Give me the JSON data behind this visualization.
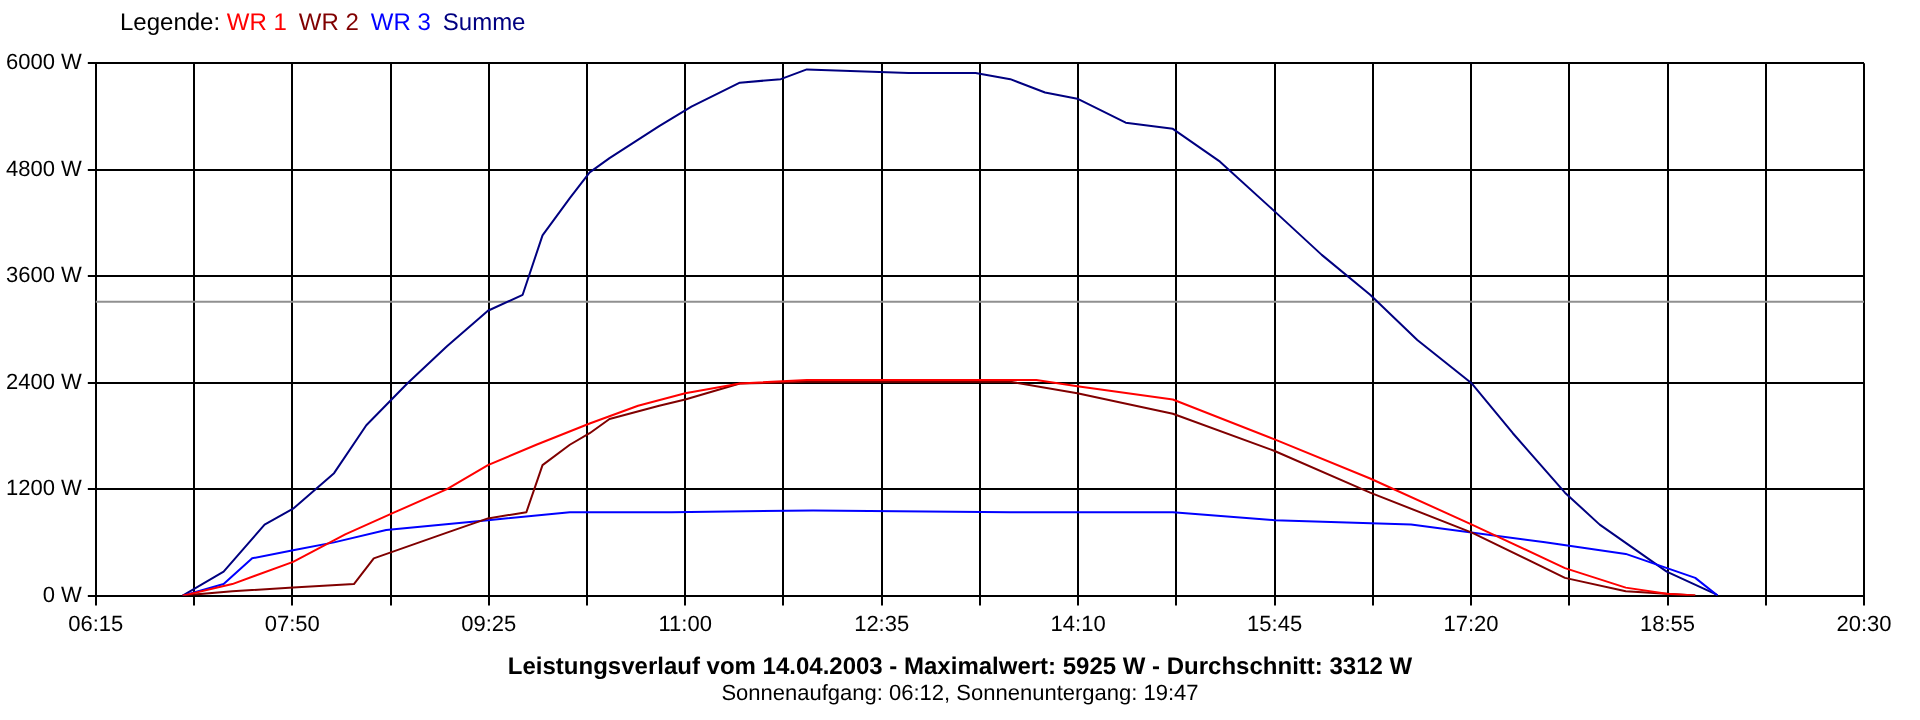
{
  "chart_data": {
    "type": "line",
    "title": "Leistungsverlauf vom 14.04.2003 - Maximalwert: 5925 W - Durchschnitt: 3312 W",
    "subtitle": "Sonnenaufgang: 06:12, Sonnenuntergang: 19:47",
    "legend_title": "Legende:",
    "legend": "top left",
    "grid": true,
    "marker": "none",
    "line_style": "solid",
    "xlim": [
      6.25,
      20.5
    ],
    "xticks": [
      {
        "value": 6.25,
        "label": "06:15"
      },
      {
        "value": 7.0417,
        "label": null
      },
      {
        "value": 7.8333,
        "label": "07:50"
      },
      {
        "value": 8.625,
        "label": null
      },
      {
        "value": 9.4167,
        "label": "09:25"
      },
      {
        "value": 10.2083,
        "label": null
      },
      {
        "value": 11,
        "label": "11:00"
      },
      {
        "value": 11.7917,
        "label": null
      },
      {
        "value": 12.5833,
        "label": "12:35"
      },
      {
        "value": 13.375,
        "label": null
      },
      {
        "value": 14.1667,
        "label": "14:10"
      },
      {
        "value": 14.9583,
        "label": null
      },
      {
        "value": 15.75,
        "label": "15:45"
      },
      {
        "value": 16.5417,
        "label": null
      },
      {
        "value": 17.3333,
        "label": "17:20"
      },
      {
        "value": 18.125,
        "label": null
      },
      {
        "value": 18.9167,
        "label": "18:55"
      },
      {
        "value": 19.7083,
        "label": null
      },
      {
        "value": 20.5,
        "label": "20:30"
      }
    ],
    "ylim": [
      0,
      6000
    ],
    "yticks": [
      {
        "value": 0,
        "label": "0 W"
      },
      {
        "value": 1200,
        "label": "1200 W"
      },
      {
        "value": 2400,
        "label": "2400 W"
      },
      {
        "value": 3600,
        "label": "3600 W"
      },
      {
        "value": 4800,
        "label": "4800 W"
      },
      {
        "value": 6000,
        "label": "6000 W"
      }
    ],
    "ref_lines": [
      {
        "axis": "y",
        "value": 3312,
        "color": "#909090"
      }
    ],
    "series": [
      {
        "name": "WR 1",
        "color": "#ff0000",
        "x": [
          6.95,
          7.35,
          7.84,
          8.26,
          8.66,
          9.08,
          9.41,
          9.8,
          10.23,
          10.62,
          11.0,
          11.44,
          11.98,
          13.62,
          13.83,
          14.16,
          14.93,
          15.75,
          16.52,
          17.34,
          18.09,
          18.58,
          18.91,
          19.14
        ],
        "values": [
          0,
          130,
          380,
          690,
          940,
          1200,
          1470,
          1700,
          1940,
          2140,
          2280,
          2390,
          2430,
          2430,
          2430,
          2360,
          2210,
          1760,
          1320,
          800,
          310,
          90,
          20,
          0
        ]
      },
      {
        "name": "WR 2",
        "color": "#800000",
        "x": [
          6.95,
          7.35,
          7.84,
          8.33,
          8.49,
          9.08,
          9.41,
          9.72,
          9.85,
          10.07,
          10.23,
          10.39,
          10.79,
          11.0,
          11.44,
          11.98,
          13.62,
          14.16,
          14.93,
          15.75,
          16.52,
          17.34,
          18.09,
          18.58,
          19.14
        ],
        "values": [
          0,
          50,
          90,
          130,
          420,
          710,
          870,
          940,
          1470,
          1700,
          1830,
          1990,
          2140,
          2210,
          2390,
          2410,
          2410,
          2280,
          2050,
          1630,
          1160,
          710,
          200,
          50,
          0
        ]
      },
      {
        "name": "WR 3",
        "color": "#0000ff",
        "x": [
          6.95,
          7.28,
          7.51,
          7.84,
          8.17,
          8.59,
          9.41,
          10.07,
          10.89,
          12.03,
          13.62,
          14.93,
          15.75,
          16.85,
          17.93,
          18.58,
          19.14,
          19.32
        ],
        "values": [
          0,
          130,
          420,
          510,
          600,
          740,
          850,
          940,
          940,
          960,
          940,
          940,
          850,
          800,
          600,
          470,
          200,
          0
        ]
      },
      {
        "name": "Summe",
        "color": "#000080",
        "x": [
          6.95,
          7.28,
          7.61,
          7.84,
          8.17,
          8.43,
          8.76,
          9.08,
          9.41,
          9.69,
          9.85,
          10.07,
          10.23,
          10.39,
          10.79,
          11.05,
          11.44,
          11.77,
          11.98,
          12.8,
          13.34,
          13.62,
          13.9,
          14.16,
          14.55,
          14.93,
          15.31,
          15.75,
          16.13,
          16.52,
          16.9,
          17.34,
          17.67,
          18.09,
          18.37,
          18.91,
          19.3,
          19.32
        ],
        "values": [
          0,
          270,
          800,
          980,
          1380,
          1920,
          2390,
          2810,
          3210,
          3390,
          4060,
          4480,
          4770,
          4930,
          5290,
          5510,
          5780,
          5820,
          5930,
          5890,
          5890,
          5820,
          5670,
          5600,
          5330,
          5260,
          4890,
          4330,
          3840,
          3390,
          2880,
          2390,
          1830,
          1160,
          800,
          270,
          20,
          0
        ]
      }
    ]
  }
}
